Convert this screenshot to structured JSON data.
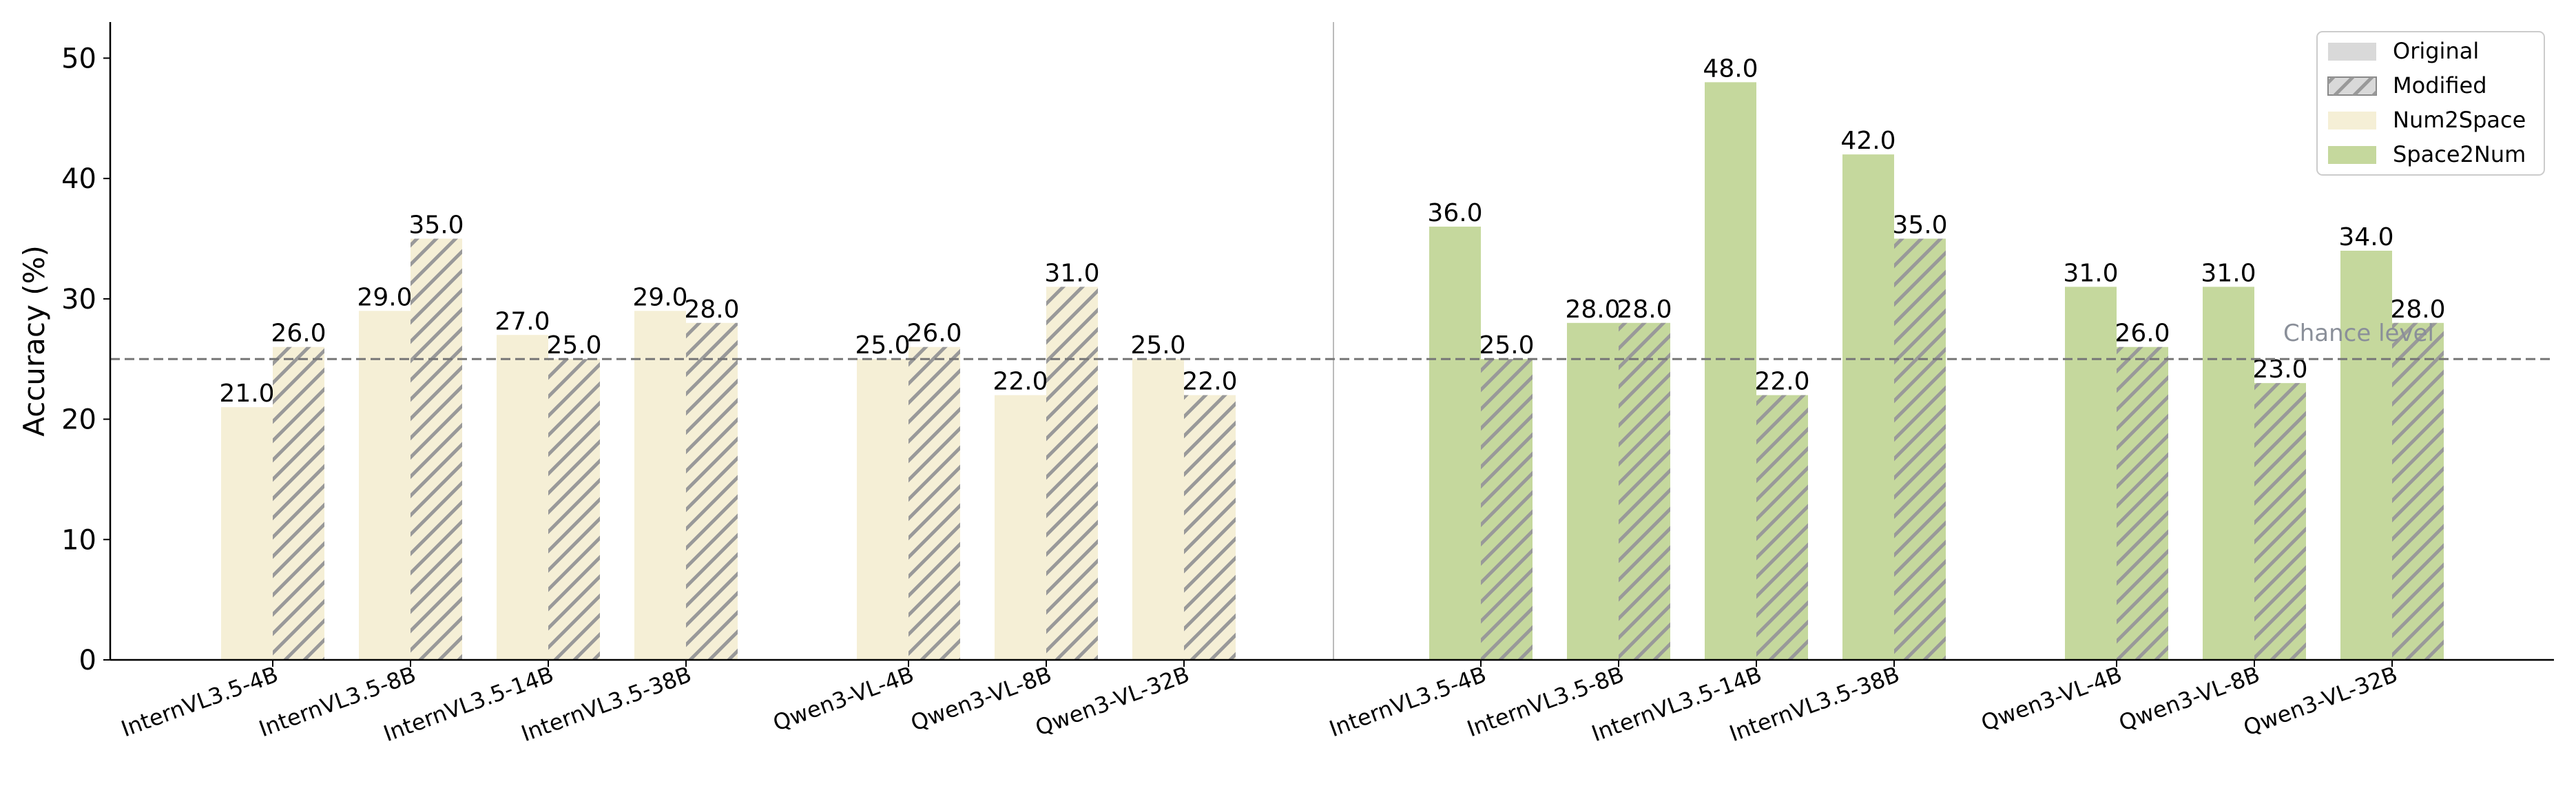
{
  "chart_data": {
    "type": "bar",
    "ylabel": "Accuracy (%)",
    "ylim": [
      0,
      53
    ],
    "yticks": [
      0,
      10,
      20,
      30,
      40,
      50
    ],
    "grid": false,
    "legend": {
      "placement": "top-right",
      "entries": [
        {
          "label": "Original",
          "style": "solid",
          "color": "#d9d9d9"
        },
        {
          "label": "Modified",
          "style": "hatched",
          "color": "#d9d9d9"
        },
        {
          "label": "Num2Space",
          "style": "solid",
          "color": "#f5efd6"
        },
        {
          "label": "Space2Num",
          "style": "solid",
          "color": "#c5d89d"
        }
      ]
    },
    "reference_line": {
      "y": 25,
      "label": "Chance level",
      "color": "#777777"
    },
    "colors": {
      "Num2Space": "#f5efd6",
      "Space2Num": "#c5d89d",
      "hatch": "#999999"
    },
    "groups": [
      {
        "name": "Num2Space",
        "categories": [
          "InternVL3.5-4B",
          "InternVL3.5-8B",
          "InternVL3.5-14B",
          "InternVL3.5-38B",
          "Qwen3-VL-4B",
          "Qwen3-VL-8B",
          "Qwen3-VL-32B"
        ],
        "series": [
          {
            "name": "Original",
            "values": [
              21.0,
              29.0,
              27.0,
              29.0,
              25.0,
              22.0,
              25.0
            ]
          },
          {
            "name": "Modified",
            "values": [
              26.0,
              35.0,
              25.0,
              28.0,
              26.0,
              31.0,
              22.0
            ]
          }
        ]
      },
      {
        "name": "Space2Num",
        "categories": [
          "InternVL3.5-4B",
          "InternVL3.5-8B",
          "InternVL3.5-14B",
          "InternVL3.5-38B",
          "Qwen3-VL-4B",
          "Qwen3-VL-8B",
          "Qwen3-VL-32B"
        ],
        "series": [
          {
            "name": "Original",
            "values": [
              36.0,
              28.0,
              48.0,
              42.0,
              31.0,
              31.0,
              34.0
            ]
          },
          {
            "name": "Modified",
            "values": [
              25.0,
              28.0,
              22.0,
              35.0,
              26.0,
              23.0,
              28.0
            ]
          }
        ]
      }
    ]
  }
}
